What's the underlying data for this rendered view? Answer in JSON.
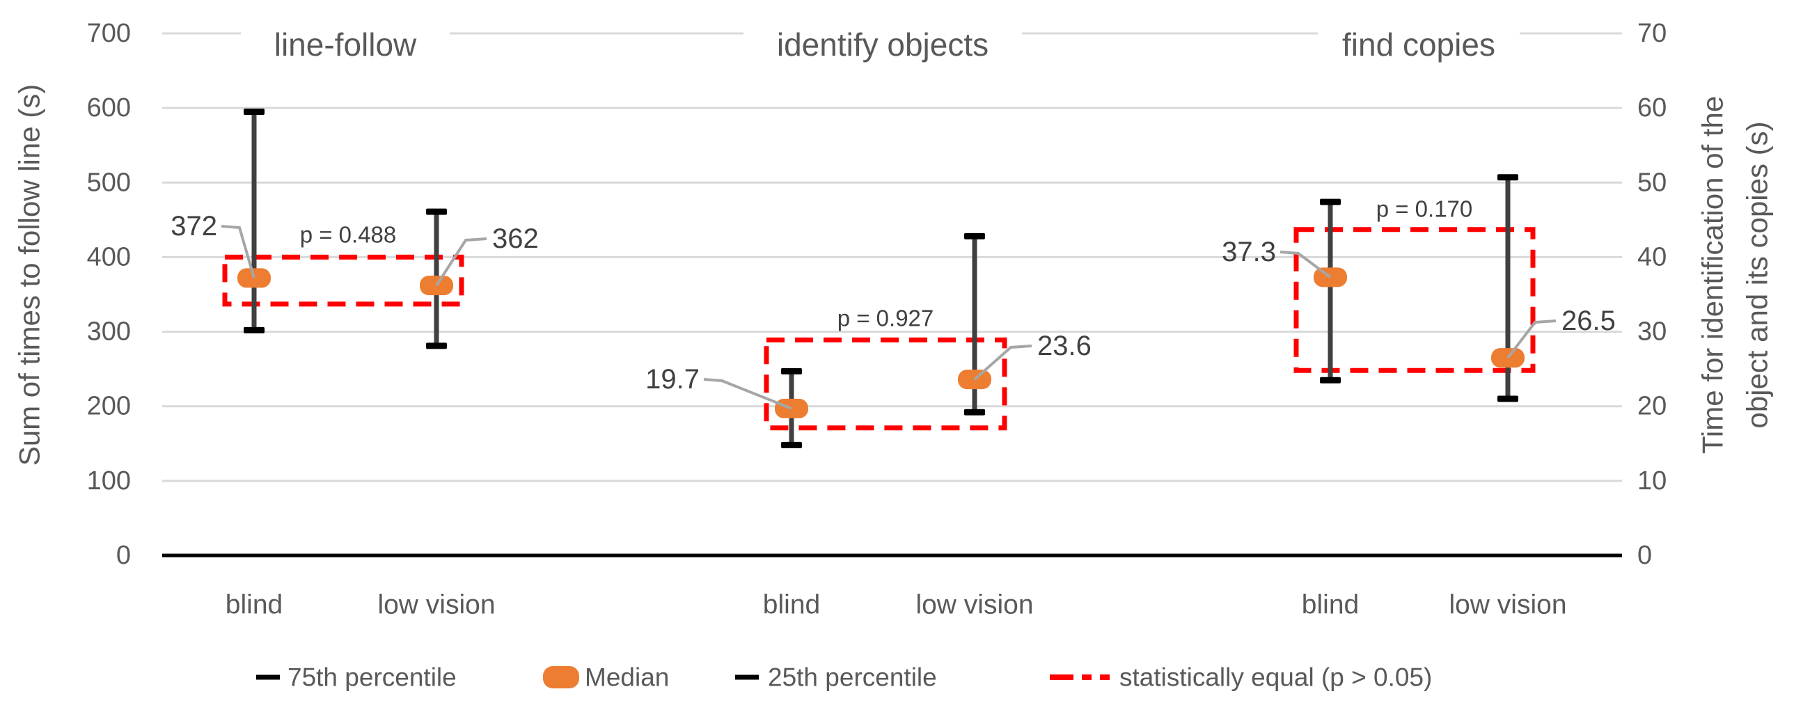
{
  "chart_data": {
    "type": "errorbar-median-comparison",
    "groups": [
      {
        "title": "line-follow",
        "axis": "left",
        "p_label": "p = 0.488",
        "series": [
          {
            "category": "blind",
            "q75": 595,
            "median": 372,
            "q25": 302,
            "data_label": "372",
            "label_side": "left"
          },
          {
            "category": "low vision",
            "q75": 461,
            "median": 362,
            "q25": 281,
            "data_label": "362",
            "label_side": "right"
          }
        ],
        "equal_box": {
          "top": 400,
          "bottom": 337
        }
      },
      {
        "title": "identify objects",
        "axis": "right",
        "p_label": "p = 0.927",
        "series": [
          {
            "category": "blind",
            "q75": 24.7,
            "median": 19.7,
            "q25": 14.8,
            "data_label": "19.7",
            "label_side": "left"
          },
          {
            "category": "low vision",
            "q75": 42.8,
            "median": 23.6,
            "q25": 19.2,
            "data_label": "23.6",
            "label_side": "right"
          }
        ],
        "equal_box": {
          "top": 28.9,
          "bottom": 17.1
        }
      },
      {
        "title": "find copies",
        "axis": "right",
        "p_label": "p = 0.170",
        "series": [
          {
            "category": "blind",
            "q75": 47.4,
            "median": 37.3,
            "q25": 23.5,
            "data_label": "37.3",
            "label_side": "left"
          },
          {
            "category": "low vision",
            "q75": 50.7,
            "median": 26.5,
            "q25": 21.0,
            "data_label": "26.5",
            "label_side": "right"
          }
        ],
        "equal_box": {
          "top": 43.7,
          "bottom": 24.8
        }
      }
    ],
    "left_axis": {
      "title": "Sum of times to follow line (s)",
      "ticks": [
        0,
        100,
        200,
        300,
        400,
        500,
        600,
        700
      ],
      "range": [
        0,
        700
      ]
    },
    "right_axis": {
      "title_lines": [
        "Time for identification of the",
        "object and its copies (s)"
      ],
      "ticks": [
        0,
        10,
        20,
        30,
        40,
        50,
        60,
        70
      ],
      "range": [
        0,
        70
      ]
    },
    "legend": [
      {
        "marker": "black-dash",
        "label": "75th percentile"
      },
      {
        "marker": "orange-median",
        "label": "Median"
      },
      {
        "marker": "black-dash",
        "label": "25th percentile"
      },
      {
        "marker": "red-dashed-line",
        "label": "statistically equal (p > 0.05)"
      }
    ],
    "colors": {
      "median": "#ED7D31",
      "whisker_stem": "#404040",
      "whisker_cap": "#000000",
      "equal_box": "#FF0000",
      "grid": "#D9D9D9",
      "axis_text": "#595959",
      "label_text": "#404040",
      "leader": "#A6A6A6",
      "baseline": "#000000"
    },
    "grid_on": true,
    "legend_position": "bottom"
  }
}
